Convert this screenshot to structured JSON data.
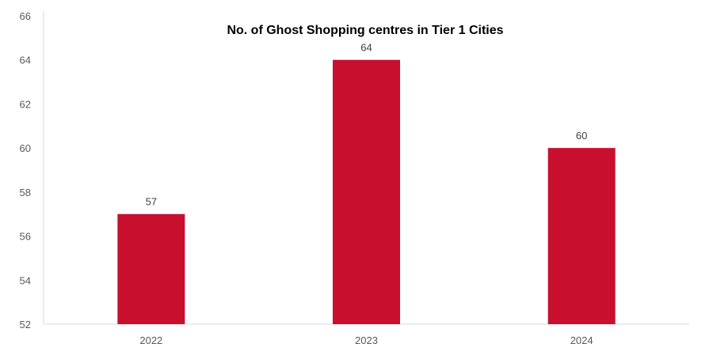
{
  "chart_data": {
    "type": "bar",
    "title": "No. of Ghost Shopping centres in Tier 1 Cities",
    "categories": [
      "2022",
      "2023",
      "2024"
    ],
    "values": [
      57,
      64,
      60
    ],
    "data_labels": [
      "57",
      "64",
      "60"
    ],
    "xlabel": "",
    "ylabel": "",
    "ylim": [
      52,
      66
    ],
    "yticks": [
      52,
      54,
      56,
      58,
      60,
      62,
      64,
      66
    ],
    "grid": false,
    "legend": "none",
    "bar_color": "#C8102E",
    "axis_color": "#D9D9D9"
  }
}
